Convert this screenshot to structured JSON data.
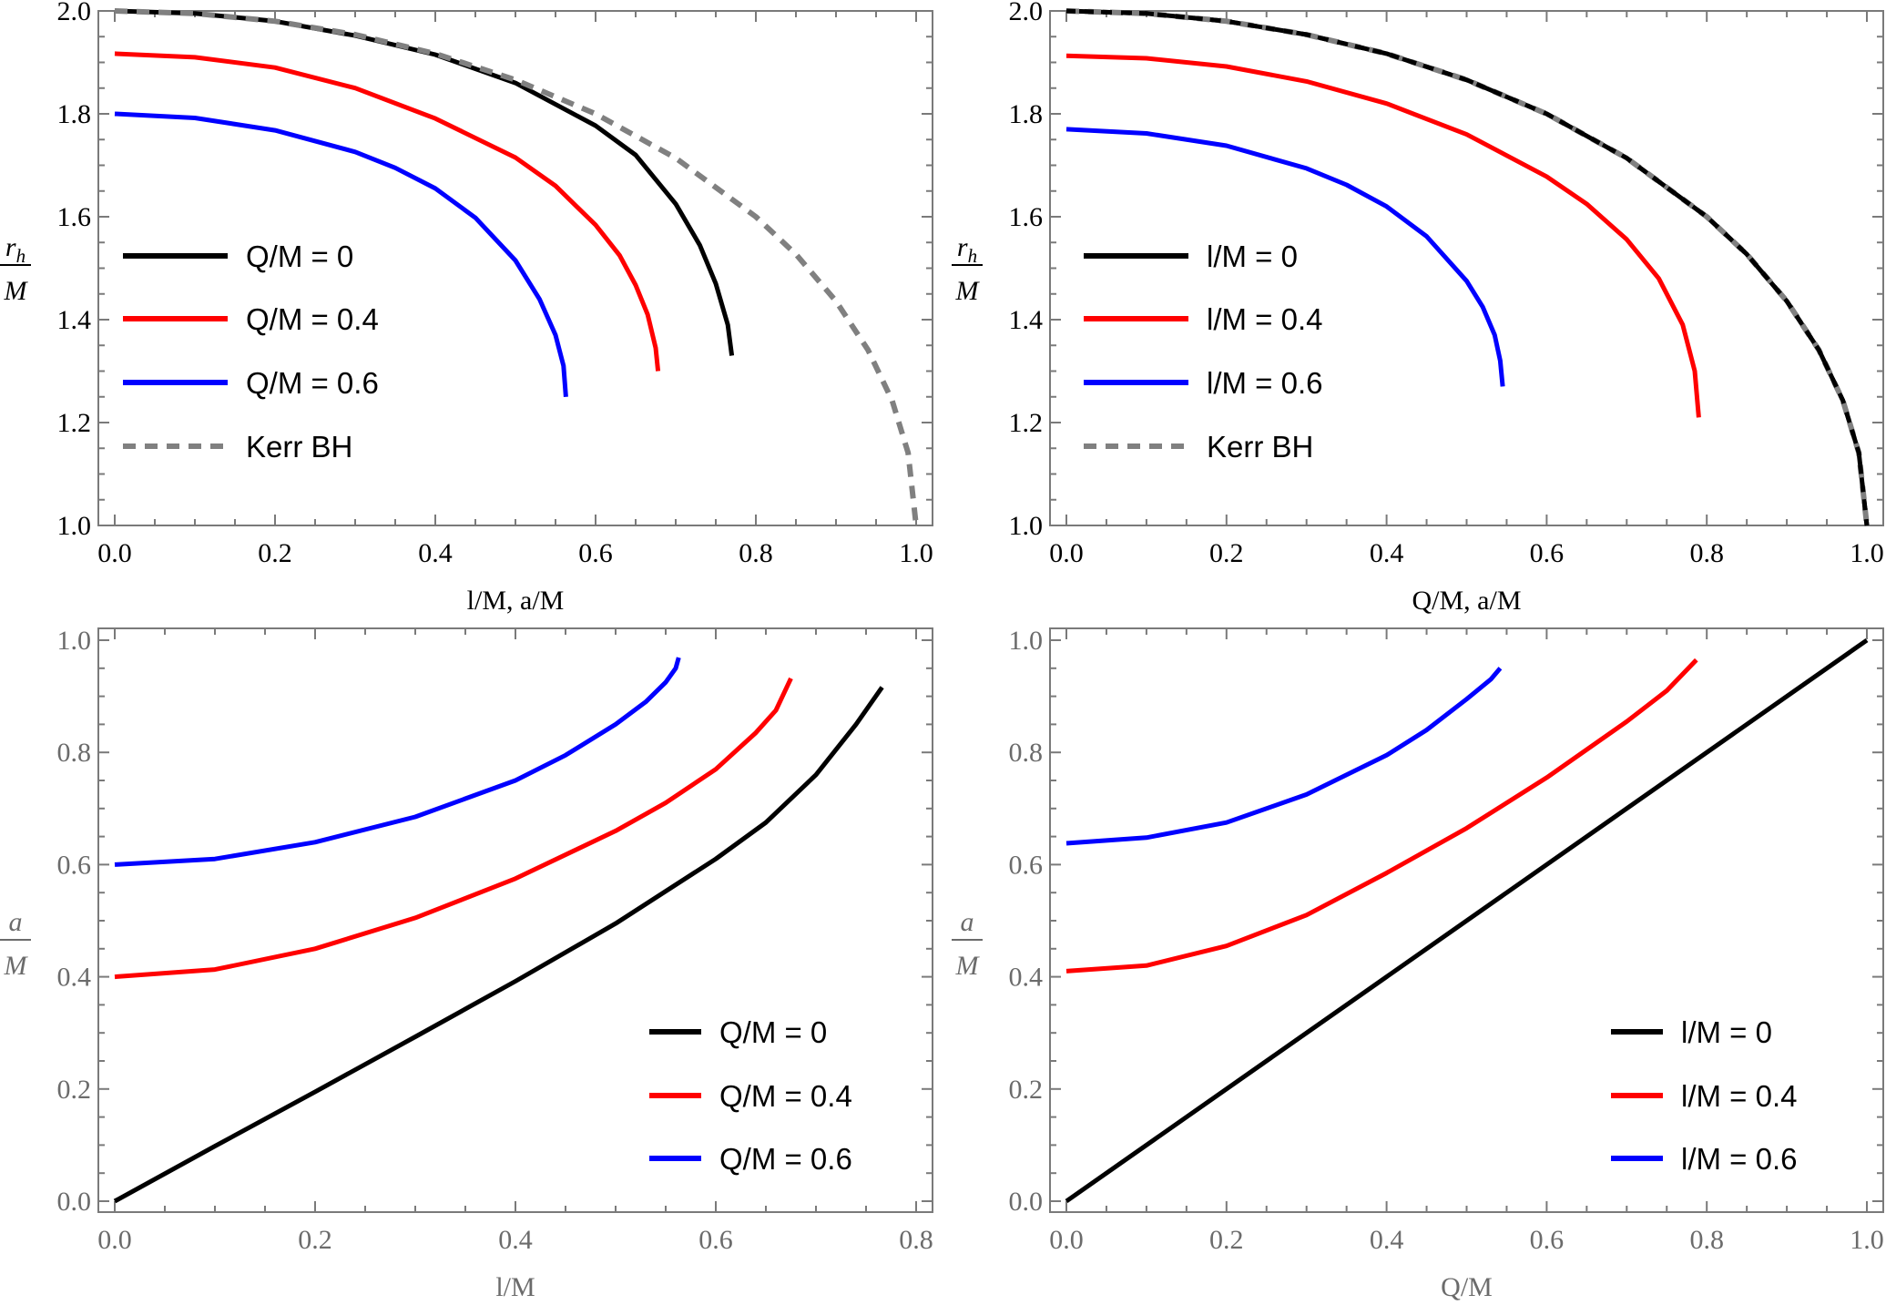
{
  "chart_data": [
    {
      "type": "line",
      "panel": "top-left",
      "xlabel": "l/M, a/M",
      "ylabel_num": "r",
      "ylabel_sub": "h",
      "ylabel_den": "M",
      "xlim": [
        0,
        1.0
      ],
      "ylim": [
        1.0,
        2.0
      ],
      "xticks": [
        "0.0",
        "0.2",
        "0.4",
        "0.6",
        "0.8",
        "1.0"
      ],
      "yticks": [
        "1.0",
        "1.2",
        "1.4",
        "1.6",
        "1.8",
        "2.0"
      ],
      "legend_position": "center-left",
      "series": [
        {
          "name": "Q/M = 0",
          "color": "#000000",
          "dash": false,
          "x": [
            0,
            0.1,
            0.2,
            0.3,
            0.4,
            0.5,
            0.6,
            0.65,
            0.7,
            0.73,
            0.75,
            0.765,
            0.77
          ],
          "y": [
            2.0,
            1.995,
            1.98,
            1.952,
            1.915,
            1.86,
            1.777,
            1.72,
            1.625,
            1.545,
            1.47,
            1.39,
            1.33
          ]
        },
        {
          "name": "Q/M = 0.4",
          "color": "#ff0000",
          "dash": false,
          "x": [
            0,
            0.1,
            0.2,
            0.3,
            0.4,
            0.5,
            0.55,
            0.6,
            0.63,
            0.65,
            0.665,
            0.675,
            0.678
          ],
          "y": [
            1.917,
            1.91,
            1.89,
            1.85,
            1.791,
            1.715,
            1.66,
            1.584,
            1.525,
            1.467,
            1.41,
            1.345,
            1.3
          ]
        },
        {
          "name": "Q/M = 0.6",
          "color": "#0000ff",
          "dash": false,
          "x": [
            0,
            0.1,
            0.2,
            0.3,
            0.35,
            0.4,
            0.45,
            0.5,
            0.53,
            0.55,
            0.56,
            0.563
          ],
          "y": [
            1.8,
            1.792,
            1.768,
            1.726,
            1.695,
            1.655,
            1.598,
            1.515,
            1.44,
            1.37,
            1.31,
            1.25
          ]
        },
        {
          "name": "Kerr BH",
          "color": "#808080",
          "dash": true,
          "x": [
            0,
            0.1,
            0.2,
            0.3,
            0.4,
            0.5,
            0.6,
            0.7,
            0.8,
            0.85,
            0.9,
            0.94,
            0.97,
            0.99,
            1.0
          ],
          "y": [
            2.0,
            1.995,
            1.98,
            1.954,
            1.917,
            1.866,
            1.8,
            1.714,
            1.6,
            1.527,
            1.436,
            1.341,
            1.243,
            1.141,
            1.0
          ]
        }
      ]
    },
    {
      "type": "line",
      "panel": "top-right",
      "xlabel": "Q/M, a/M",
      "ylabel_num": "r",
      "ylabel_sub": "h",
      "ylabel_den": "M",
      "xlim": [
        0,
        1.0
      ],
      "ylim": [
        1.0,
        2.0
      ],
      "xticks": [
        "0.0",
        "0.2",
        "0.4",
        "0.6",
        "0.8",
        "1.0"
      ],
      "yticks": [
        "1.0",
        "1.2",
        "1.4",
        "1.6",
        "1.8",
        "2.0"
      ],
      "legend_position": "center-left",
      "series": [
        {
          "name": "l/M = 0",
          "color": "#000000",
          "dash": false,
          "x": [
            0,
            0.1,
            0.2,
            0.3,
            0.4,
            0.5,
            0.6,
            0.7,
            0.8,
            0.85,
            0.9,
            0.94,
            0.97,
            0.99,
            1.0
          ],
          "y": [
            2.0,
            1.995,
            1.98,
            1.954,
            1.917,
            1.866,
            1.8,
            1.714,
            1.6,
            1.527,
            1.436,
            1.341,
            1.243,
            1.141,
            1.0
          ]
        },
        {
          "name": "l/M = 0.4",
          "color": "#ff0000",
          "dash": false,
          "x": [
            0,
            0.1,
            0.2,
            0.3,
            0.4,
            0.5,
            0.6,
            0.65,
            0.7,
            0.74,
            0.77,
            0.785,
            0.79
          ],
          "y": [
            1.913,
            1.908,
            1.892,
            1.863,
            1.82,
            1.76,
            1.678,
            1.625,
            1.556,
            1.48,
            1.39,
            1.3,
            1.21
          ]
        },
        {
          "name": "l/M = 0.6",
          "color": "#0000ff",
          "dash": false,
          "x": [
            0,
            0.1,
            0.2,
            0.3,
            0.35,
            0.4,
            0.45,
            0.5,
            0.52,
            0.535,
            0.542,
            0.545
          ],
          "y": [
            1.77,
            1.762,
            1.738,
            1.694,
            1.662,
            1.62,
            1.562,
            1.475,
            1.425,
            1.37,
            1.32,
            1.27
          ]
        },
        {
          "name": "Kerr BH",
          "color": "#808080",
          "dash": true,
          "x": [
            0,
            0.1,
            0.2,
            0.3,
            0.4,
            0.5,
            0.6,
            0.7,
            0.8,
            0.85,
            0.9,
            0.94,
            0.97,
            0.99,
            1.0
          ],
          "y": [
            2.0,
            1.995,
            1.98,
            1.954,
            1.917,
            1.866,
            1.8,
            1.714,
            1.6,
            1.527,
            1.436,
            1.341,
            1.243,
            1.141,
            1.0
          ]
        }
      ]
    },
    {
      "type": "line",
      "panel": "bottom-left",
      "xlabel": "l/M",
      "ylabel_num": "a",
      "ylabel_sub": "",
      "ylabel_den": "M",
      "xlim": [
        0,
        0.8
      ],
      "ylim": [
        0.0,
        1.0
      ],
      "xticks": [
        "0.0",
        "0.2",
        "0.4",
        "0.6",
        "0.8"
      ],
      "yticks": [
        "0.0",
        "0.2",
        "0.4",
        "0.6",
        "0.8",
        "1.0"
      ],
      "legend_position": "bottom-right",
      "series": [
        {
          "name": "Q/M = 0",
          "color": "#000000",
          "dash": false,
          "x": [
            0,
            0.1,
            0.2,
            0.3,
            0.4,
            0.5,
            0.6,
            0.65,
            0.7,
            0.74,
            0.766
          ],
          "y": [
            0,
            0.098,
            0.195,
            0.293,
            0.392,
            0.495,
            0.61,
            0.675,
            0.76,
            0.85,
            0.916
          ]
        },
        {
          "name": "Q/M = 0.4",
          "color": "#ff0000",
          "dash": false,
          "x": [
            0,
            0.1,
            0.2,
            0.3,
            0.4,
            0.5,
            0.55,
            0.6,
            0.64,
            0.66,
            0.675
          ],
          "y": [
            0.4,
            0.413,
            0.45,
            0.505,
            0.575,
            0.66,
            0.71,
            0.77,
            0.835,
            0.875,
            0.932
          ]
        },
        {
          "name": "Q/M = 0.6",
          "color": "#0000ff",
          "dash": false,
          "x": [
            0,
            0.1,
            0.2,
            0.3,
            0.4,
            0.45,
            0.5,
            0.53,
            0.55,
            0.56,
            0.563
          ],
          "y": [
            0.6,
            0.61,
            0.64,
            0.685,
            0.75,
            0.795,
            0.85,
            0.89,
            0.925,
            0.95,
            0.969
          ]
        }
      ]
    },
    {
      "type": "line",
      "panel": "bottom-right",
      "xlabel": "Q/M",
      "ylabel_num": "a",
      "ylabel_sub": "",
      "ylabel_den": "M",
      "xlim": [
        0,
        1.0
      ],
      "ylim": [
        0.0,
        1.0
      ],
      "xticks": [
        "0.0",
        "0.2",
        "0.4",
        "0.6",
        "0.8",
        "1.0"
      ],
      "yticks": [
        "0.0",
        "0.2",
        "0.4",
        "0.6",
        "0.8",
        "1.0"
      ],
      "legend_position": "bottom-right",
      "series": [
        {
          "name": "l/M = 0",
          "color": "#000000",
          "dash": false,
          "x": [
            0,
            1.0
          ],
          "y": [
            0,
            1.0
          ]
        },
        {
          "name": "l/M = 0.4",
          "color": "#ff0000",
          "dash": false,
          "x": [
            0,
            0.1,
            0.2,
            0.3,
            0.4,
            0.5,
            0.6,
            0.7,
            0.75,
            0.787
          ],
          "y": [
            0.41,
            0.42,
            0.455,
            0.51,
            0.585,
            0.665,
            0.755,
            0.855,
            0.91,
            0.965
          ]
        },
        {
          "name": "l/M = 0.6",
          "color": "#0000ff",
          "dash": false,
          "x": [
            0,
            0.1,
            0.2,
            0.3,
            0.4,
            0.45,
            0.5,
            0.53,
            0.542
          ],
          "y": [
            0.638,
            0.648,
            0.675,
            0.725,
            0.795,
            0.84,
            0.895,
            0.93,
            0.95
          ]
        }
      ]
    }
  ]
}
